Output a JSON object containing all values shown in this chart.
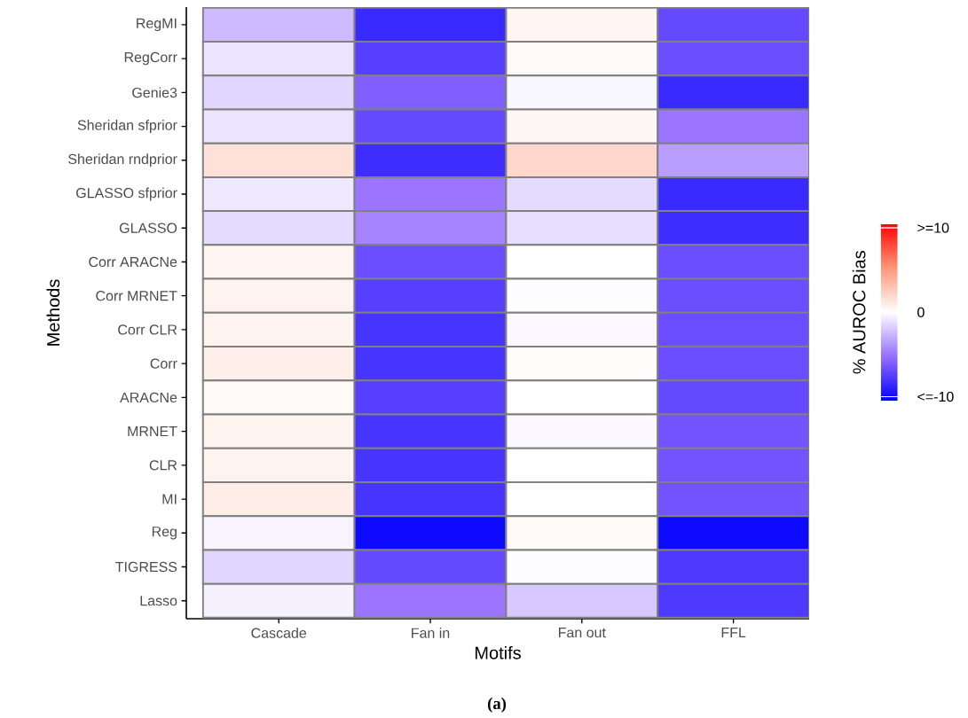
{
  "chart_data": {
    "type": "heatmap",
    "xlabel": "Motifs",
    "ylabel": "Methods",
    "clabel": "% AUROC Bias",
    "categories": [
      "Cascade",
      "Fan in",
      "Fan out",
      "FFL"
    ],
    "y_categories": [
      "RegMI",
      "RegCorr",
      "Genie3",
      "Sheridan sfprior",
      "Sheridan rndprior",
      "GLASSO sfprior",
      "GLASSO",
      "Corr ARACNe",
      "Corr MRNET",
      "Corr CLR",
      "Corr",
      "ARACNe",
      "MRNET",
      "CLR",
      "MI",
      "Reg",
      "TIGRESS",
      "Lasso"
    ],
    "cells": [
      [
        -2.5,
        -8.5,
        0.5,
        -7
      ],
      [
        -1,
        -7.5,
        0.3,
        -6.8
      ],
      [
        -1.5,
        -6,
        -0.3,
        -8.5
      ],
      [
        -1,
        -7,
        0.4,
        -5
      ],
      [
        1.5,
        -8.3,
        2,
        -3.5
      ],
      [
        -0.8,
        -5,
        -1.3,
        -8.5
      ],
      [
        -1.3,
        -4.5,
        -1.2,
        -8.3
      ],
      [
        0.5,
        -6.8,
        0,
        -6.8
      ],
      [
        0.6,
        -7.5,
        -0.1,
        -6.8
      ],
      [
        0.6,
        -8,
        -0.2,
        -6.8
      ],
      [
        0.8,
        -8,
        0.1,
        -6.8
      ],
      [
        0.3,
        -7.5,
        0,
        -7
      ],
      [
        0.6,
        -8,
        -0.2,
        -6.5
      ],
      [
        0.6,
        -8,
        0,
        -6.5
      ],
      [
        0.9,
        -8,
        0,
        -6.5
      ],
      [
        -0.4,
        -10,
        0.3,
        -10
      ],
      [
        -1.5,
        -7,
        -0.1,
        -7.8
      ],
      [
        -0.5,
        -5,
        -2,
        -7.8
      ]
    ],
    "clim": [
      -10.5,
      10.5
    ],
    "cticks": [
      {
        "value": 10,
        "label": ">=10"
      },
      0,
      {
        "value": -10,
        "label": "<=-10"
      }
    ],
    "annotations": [
      "(a)"
    ]
  }
}
